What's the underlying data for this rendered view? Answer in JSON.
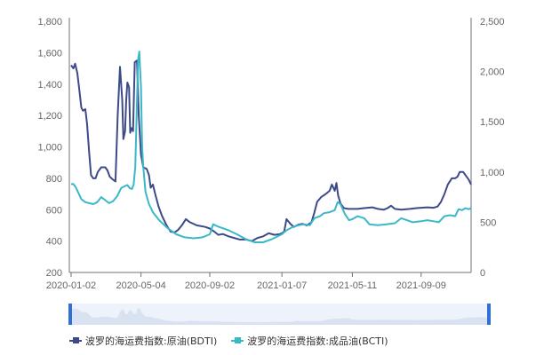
{
  "chart_data": {
    "type": "line",
    "title": "",
    "xlabel": "",
    "ylabel": "",
    "x_ticks": [
      "2020-01-02",
      "2020-05-04",
      "2020-09-02",
      "2021-01-07",
      "2021-05-11",
      "2021-09-09"
    ],
    "y_left": {
      "ylim": [
        200,
        1800
      ],
      "ticks": [
        200,
        400,
        600,
        800,
        "1,000",
        "1,200",
        "1,400",
        "1,600",
        "1,800"
      ]
    },
    "y_right": {
      "ylim": [
        0,
        2500
      ],
      "ticks": [
        0,
        500,
        "1,000",
        "1,500",
        "2,000",
        "2,500"
      ]
    },
    "grid": false,
    "legend_position": "bottom-left",
    "series": [
      {
        "name": "波罗的海运费指数:原油(BDTI)",
        "axis": "left",
        "color": "#3d4a8a",
        "points": [
          [
            "2020-01-02",
            1520
          ],
          [
            "2020-01-06",
            1500
          ],
          [
            "2020-01-09",
            1530
          ],
          [
            "2020-01-13",
            1470
          ],
          [
            "2020-01-16",
            1380
          ],
          [
            "2020-01-20",
            1250
          ],
          [
            "2020-01-23",
            1230
          ],
          [
            "2020-01-27",
            1240
          ],
          [
            "2020-01-30",
            1150
          ],
          [
            "2020-02-03",
            950
          ],
          [
            "2020-02-06",
            820
          ],
          [
            "2020-02-10",
            800
          ],
          [
            "2020-02-14",
            800
          ],
          [
            "2020-02-18",
            840
          ],
          [
            "2020-02-24",
            870
          ],
          [
            "2020-03-02",
            870
          ],
          [
            "2020-03-06",
            850
          ],
          [
            "2020-03-10",
            810
          ],
          [
            "2020-03-16",
            790
          ],
          [
            "2020-03-20",
            780
          ],
          [
            "2020-03-24",
            1200
          ],
          [
            "2020-03-28",
            1510
          ],
          [
            "2020-04-01",
            1300
          ],
          [
            "2020-04-03",
            1050
          ],
          [
            "2020-04-06",
            1100
          ],
          [
            "2020-04-08",
            1300
          ],
          [
            "2020-04-10",
            1410
          ],
          [
            "2020-04-13",
            1380
          ],
          [
            "2020-04-15",
            1090
          ],
          [
            "2020-04-17",
            1120
          ],
          [
            "2020-04-20",
            1100
          ],
          [
            "2020-04-23",
            1540
          ],
          [
            "2020-04-27",
            1550
          ],
          [
            "2020-04-30",
            1200
          ],
          [
            "2020-05-04",
            950
          ],
          [
            "2020-05-08",
            870
          ],
          [
            "2020-05-14",
            860
          ],
          [
            "2020-05-18",
            820
          ],
          [
            "2020-05-21",
            740
          ],
          [
            "2020-05-25",
            760
          ],
          [
            "2020-05-29",
            700
          ],
          [
            "2020-06-04",
            620
          ],
          [
            "2020-06-10",
            560
          ],
          [
            "2020-06-18",
            500
          ],
          [
            "2020-06-25",
            460
          ],
          [
            "2020-07-02",
            455
          ],
          [
            "2020-07-08",
            470
          ],
          [
            "2020-07-15",
            500
          ],
          [
            "2020-07-22",
            540
          ],
          [
            "2020-07-29",
            520
          ],
          [
            "2020-08-10",
            500
          ],
          [
            "2020-08-25",
            490
          ],
          [
            "2020-09-02",
            480
          ],
          [
            "2020-09-10",
            460
          ],
          [
            "2020-09-17",
            440
          ],
          [
            "2020-09-25",
            445
          ],
          [
            "2020-10-05",
            430
          ],
          [
            "2020-10-15",
            420
          ],
          [
            "2020-10-25",
            410
          ],
          [
            "2020-11-05",
            410
          ],
          [
            "2020-11-15",
            400
          ],
          [
            "2020-11-25",
            420
          ],
          [
            "2020-12-05",
            430
          ],
          [
            "2020-12-15",
            450
          ],
          [
            "2020-12-25",
            440
          ],
          [
            "2021-01-04",
            445
          ],
          [
            "2021-01-07",
            450
          ],
          [
            "2021-01-11",
            460
          ],
          [
            "2021-01-15",
            540
          ],
          [
            "2021-01-22",
            510
          ],
          [
            "2021-01-28",
            490
          ],
          [
            "2021-02-05",
            505
          ],
          [
            "2021-02-12",
            510
          ],
          [
            "2021-02-20",
            500
          ],
          [
            "2021-02-28",
            520
          ],
          [
            "2021-03-05",
            580
          ],
          [
            "2021-03-10",
            650
          ],
          [
            "2021-03-17",
            680
          ],
          [
            "2021-03-25",
            700
          ],
          [
            "2021-04-01",
            720
          ],
          [
            "2021-04-05",
            760
          ],
          [
            "2021-04-10",
            720
          ],
          [
            "2021-04-13",
            770
          ],
          [
            "2021-04-16",
            690
          ],
          [
            "2021-04-20",
            640
          ],
          [
            "2021-04-26",
            610
          ],
          [
            "2021-05-04",
            605
          ],
          [
            "2021-05-11",
            605
          ],
          [
            "2021-05-20",
            605
          ],
          [
            "2021-06-01",
            610
          ],
          [
            "2021-06-15",
            615
          ],
          [
            "2021-06-25",
            605
          ],
          [
            "2021-07-05",
            600
          ],
          [
            "2021-07-12",
            610
          ],
          [
            "2021-07-18",
            625
          ],
          [
            "2021-07-25",
            605
          ],
          [
            "2021-08-05",
            600
          ],
          [
            "2021-08-20",
            605
          ],
          [
            "2021-09-01",
            610
          ],
          [
            "2021-09-09",
            612
          ],
          [
            "2021-09-20",
            615
          ],
          [
            "2021-10-01",
            612
          ],
          [
            "2021-10-08",
            620
          ],
          [
            "2021-10-14",
            650
          ],
          [
            "2021-10-20",
            700
          ],
          [
            "2021-10-26",
            760
          ],
          [
            "2021-11-02",
            800
          ],
          [
            "2021-11-08",
            800
          ],
          [
            "2021-11-12",
            810
          ],
          [
            "2021-11-16",
            840
          ],
          [
            "2021-11-22",
            840
          ],
          [
            "2021-11-28",
            810
          ],
          [
            "2021-12-02",
            790
          ],
          [
            "2021-12-06",
            760
          ]
        ]
      },
      {
        "name": "波罗的海运费指数:成品油(BCTI)",
        "axis": "right",
        "color": "#3ab8c8",
        "points": [
          [
            "2020-01-02",
            880
          ],
          [
            "2020-01-06",
            880
          ],
          [
            "2020-01-10",
            850
          ],
          [
            "2020-01-15",
            790
          ],
          [
            "2020-01-20",
            730
          ],
          [
            "2020-01-27",
            700
          ],
          [
            "2020-02-03",
            690
          ],
          [
            "2020-02-10",
            680
          ],
          [
            "2020-02-17",
            700
          ],
          [
            "2020-02-24",
            750
          ],
          [
            "2020-03-02",
            720
          ],
          [
            "2020-03-09",
            690
          ],
          [
            "2020-03-16",
            710
          ],
          [
            "2020-03-23",
            760
          ],
          [
            "2020-03-30",
            840
          ],
          [
            "2020-04-06",
            860
          ],
          [
            "2020-04-10",
            870
          ],
          [
            "2020-04-14",
            840
          ],
          [
            "2020-04-18",
            830
          ],
          [
            "2020-04-21",
            870
          ],
          [
            "2020-04-24",
            1050
          ],
          [
            "2020-04-27",
            1700
          ],
          [
            "2020-04-29",
            2120
          ],
          [
            "2020-05-01",
            2200
          ],
          [
            "2020-05-04",
            1850
          ],
          [
            "2020-05-06",
            1250
          ],
          [
            "2020-05-08",
            1050
          ],
          [
            "2020-05-12",
            800
          ],
          [
            "2020-05-18",
            680
          ],
          [
            "2020-05-25",
            600
          ],
          [
            "2020-06-05",
            520
          ],
          [
            "2020-06-20",
            440
          ],
          [
            "2020-07-05",
            380
          ],
          [
            "2020-07-20",
            350
          ],
          [
            "2020-08-05",
            340
          ],
          [
            "2020-08-20",
            350
          ],
          [
            "2020-09-02",
            380
          ],
          [
            "2020-09-08",
            480
          ],
          [
            "2020-09-15",
            460
          ],
          [
            "2020-09-25",
            440
          ],
          [
            "2020-10-05",
            420
          ],
          [
            "2020-10-20",
            380
          ],
          [
            "2020-11-05",
            330
          ],
          [
            "2020-11-20",
            300
          ],
          [
            "2020-12-05",
            300
          ],
          [
            "2020-12-20",
            330
          ],
          [
            "2021-01-07",
            380
          ],
          [
            "2021-01-15",
            420
          ],
          [
            "2021-01-25",
            450
          ],
          [
            "2021-02-05",
            470
          ],
          [
            "2021-02-15",
            480
          ],
          [
            "2021-02-25",
            470
          ],
          [
            "2021-03-05",
            540
          ],
          [
            "2021-03-15",
            560
          ],
          [
            "2021-03-22",
            590
          ],
          [
            "2021-04-01",
            600
          ],
          [
            "2021-04-10",
            620
          ],
          [
            "2021-04-15",
            700
          ],
          [
            "2021-04-20",
            680
          ],
          [
            "2021-04-28",
            580
          ],
          [
            "2021-05-05",
            520
          ],
          [
            "2021-05-11",
            530
          ],
          [
            "2021-05-20",
            560
          ],
          [
            "2021-06-01",
            540
          ],
          [
            "2021-06-10",
            480
          ],
          [
            "2021-06-25",
            470
          ],
          [
            "2021-07-10",
            480
          ],
          [
            "2021-07-25",
            490
          ],
          [
            "2021-08-05",
            540
          ],
          [
            "2021-08-15",
            520
          ],
          [
            "2021-08-25",
            500
          ],
          [
            "2021-09-09",
            510
          ],
          [
            "2021-09-20",
            520
          ],
          [
            "2021-10-01",
            510
          ],
          [
            "2021-10-10",
            500
          ],
          [
            "2021-10-20",
            560
          ],
          [
            "2021-10-30",
            570
          ],
          [
            "2021-11-08",
            560
          ],
          [
            "2021-11-14",
            630
          ],
          [
            "2021-11-20",
            620
          ],
          [
            "2021-11-26",
            640
          ],
          [
            "2021-12-02",
            630
          ],
          [
            "2021-12-06",
            640
          ]
        ]
      }
    ]
  }
}
